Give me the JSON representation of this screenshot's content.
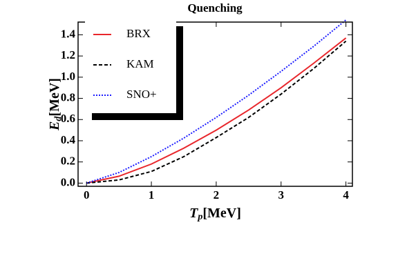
{
  "chart_data": {
    "type": "line",
    "title": "Quenching",
    "xlabel": {
      "symbol": "T",
      "subscript": "p",
      "unit": "[MeV]"
    },
    "ylabel": {
      "symbol": "E",
      "subscript": "d",
      "unit": "[MeV]"
    },
    "x": [
      0,
      0.5,
      1,
      1.5,
      2,
      2.5,
      3,
      3.5,
      4
    ],
    "series": [
      {
        "name": "BRX",
        "color": "#e8262b",
        "style": "solid",
        "values": [
          0,
          0.065,
          0.18,
          0.33,
          0.5,
          0.69,
          0.9,
          1.13,
          1.37
        ]
      },
      {
        "name": "KAM",
        "color": "#000000",
        "style": "dashed",
        "values": [
          0,
          0.03,
          0.11,
          0.25,
          0.43,
          0.62,
          0.84,
          1.08,
          1.34
        ]
      },
      {
        "name": "SNO+",
        "color": "#1a1aff",
        "style": "dotted",
        "values": [
          0,
          0.1,
          0.25,
          0.425,
          0.62,
          0.83,
          1.055,
          1.29,
          1.54
        ]
      }
    ],
    "xlim": [
      -0.13,
      4.1
    ],
    "ylim": [
      -0.03,
      1.52
    ],
    "xticks": [
      0,
      1,
      2,
      3,
      4
    ],
    "yticks": [
      {
        "value": 0,
        "label": "0.0"
      },
      0.2,
      0.4,
      0.6,
      0.8,
      {
        "value": 1,
        "label": "1.0"
      },
      1.2,
      1.4
    ],
    "legend": "upper left"
  }
}
